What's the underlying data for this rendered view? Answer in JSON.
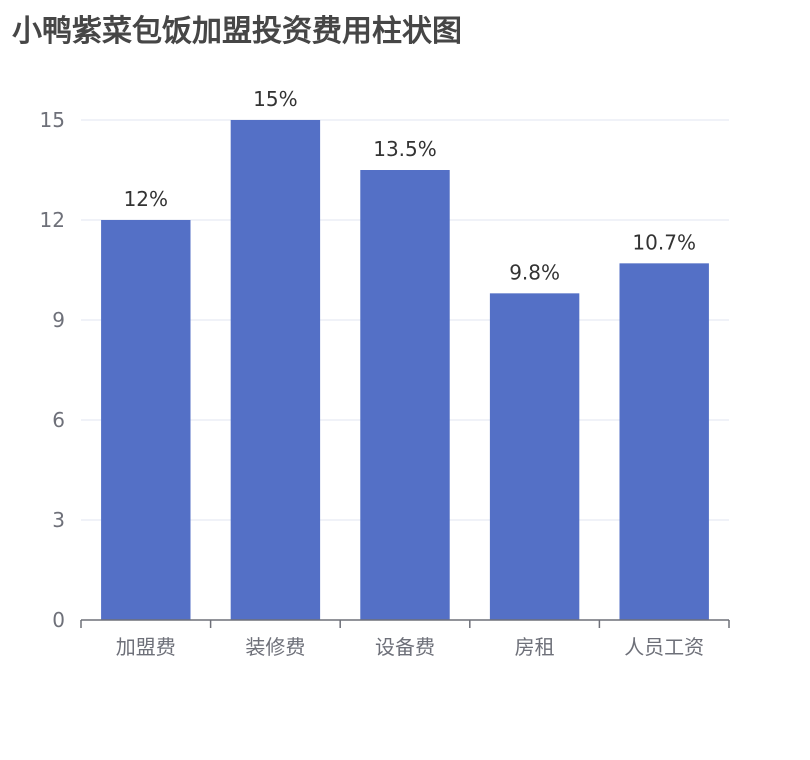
{
  "chart_data": {
    "type": "bar",
    "title": "小鸭紫菜包饭加盟投资费用柱状图",
    "categories": [
      "加盟费",
      "装修费",
      "设备费",
      "房租",
      "人员工资"
    ],
    "values": [
      12,
      15,
      13.5,
      9.8,
      10.7
    ],
    "data_labels": [
      "12%",
      "15%",
      "13.5%",
      "9.8%",
      "10.7%"
    ],
    "y_ticks": [
      0,
      3,
      6,
      9,
      12,
      15
    ],
    "ylim": [
      0,
      15
    ],
    "xlabel": "",
    "ylabel": "",
    "grid": true,
    "bar_color": "#5470c6",
    "grid_color": "#e0e6f1",
    "axis_color": "#6e7079"
  }
}
